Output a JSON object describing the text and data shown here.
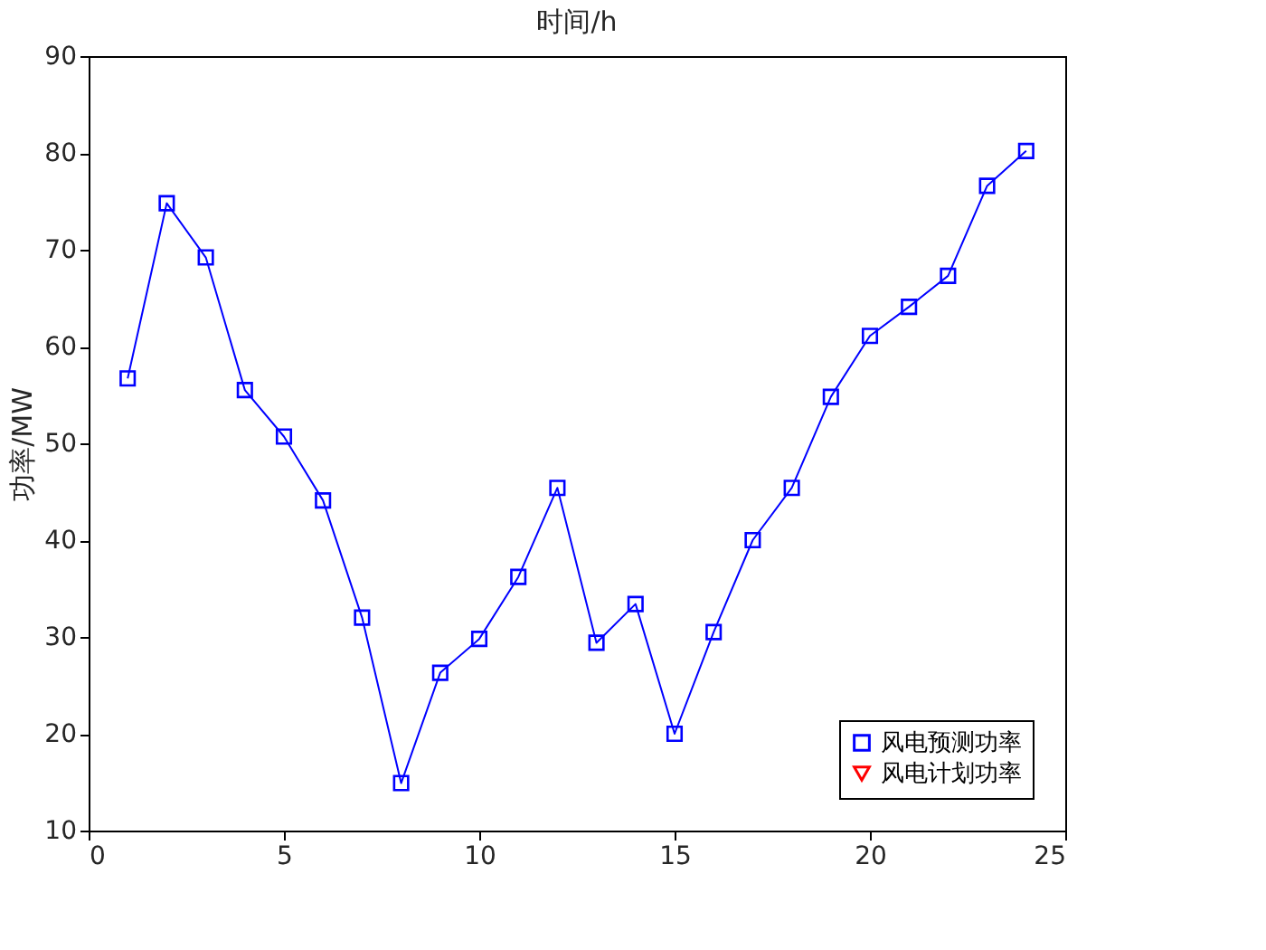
{
  "chart_data": {
    "type": "line",
    "title": "时间/h",
    "ylabel": "功率/MW",
    "x": [
      1,
      2,
      3,
      4,
      5,
      6,
      7,
      8,
      9,
      10,
      11,
      12,
      13,
      14,
      15,
      16,
      17,
      18,
      19,
      20,
      21,
      22,
      23,
      24
    ],
    "series": [
      {
        "name": "风电预测功率",
        "color": "#0000ff",
        "marker": "square",
        "values": [
          56.7,
          74.8,
          69.2,
          55.5,
          50.7,
          44.1,
          32.0,
          14.9,
          26.3,
          29.8,
          36.2,
          45.4,
          29.4,
          33.4,
          20.0,
          30.5,
          40.0,
          45.4,
          54.8,
          61.1,
          64.1,
          67.3,
          76.6,
          80.2
        ]
      },
      {
        "name": "风电计划功率",
        "color": "#ff0000",
        "marker": "triangle",
        "values": [
          null,
          null,
          null,
          null,
          null,
          null,
          null,
          null,
          null,
          null,
          null,
          null,
          null,
          null,
          null,
          null,
          null,
          null,
          null,
          null,
          null,
          null,
          null,
          null
        ]
      }
    ],
    "xlim": [
      0,
      25
    ],
    "xticks": [
      0,
      5,
      10,
      15,
      20,
      25
    ],
    "ylim": [
      10,
      90
    ],
    "yticks": [
      10,
      20,
      30,
      40,
      50,
      60,
      70,
      80,
      90
    ],
    "grid": false,
    "legend": "bottom right",
    "line_style": "solid"
  }
}
